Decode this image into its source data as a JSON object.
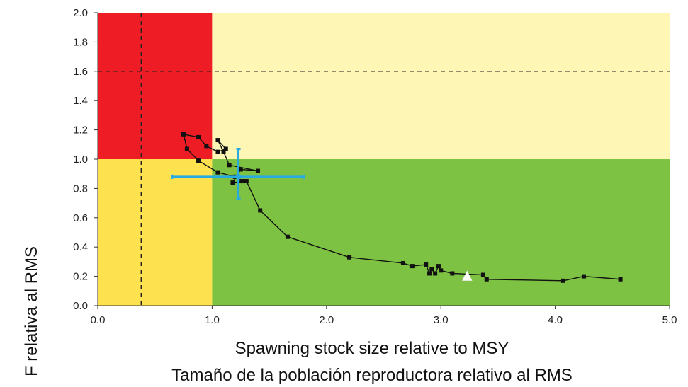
{
  "chart_data": {
    "type": "scatter",
    "xlabel": "Spawning stock size relative to MSY",
    "xlabel_es": "Tamaño de la población reproductora relativo al RMS",
    "ylabel": "F relativa al RMS",
    "xlim": [
      0.0,
      5.0
    ],
    "ylim": [
      0.0,
      2.0
    ],
    "x_ticks": [
      "0.0",
      "1.0",
      "2.0",
      "3.0",
      "4.0",
      "5.0"
    ],
    "y_ticks": [
      "0.0",
      "0.2",
      "0.4",
      "0.6",
      "0.8",
      "1.0",
      "1.2",
      "1.4",
      "1.6",
      "1.8",
      "2.0"
    ],
    "zones": [
      {
        "name": "overfished-overfishing",
        "x": [
          0.0,
          1.0
        ],
        "y": [
          1.0,
          2.0
        ],
        "color": "#ee1c24"
      },
      {
        "name": "overfishing",
        "x": [
          1.0,
          5.0
        ],
        "y": [
          1.0,
          2.0
        ],
        "color": "#fef6b5"
      },
      {
        "name": "overfished",
        "x": [
          0.0,
          1.0
        ],
        "y": [
          0.0,
          1.0
        ],
        "color": "#fde14f"
      },
      {
        "name": "healthy",
        "x": [
          1.0,
          5.0
        ],
        "y": [
          0.0,
          1.0
        ],
        "color": "#7dc242"
      }
    ],
    "reference_lines": [
      {
        "orientation": "vertical",
        "value": 0.38,
        "style": "dashed"
      },
      {
        "orientation": "horizontal",
        "value": 1.6,
        "style": "dashed"
      }
    ],
    "series": [
      {
        "color": "#111111",
        "points": [
          [
            4.57,
            0.18
          ],
          [
            4.25,
            0.2
          ],
          [
            4.07,
            0.17
          ],
          [
            3.4,
            0.18
          ],
          [
            3.37,
            0.21
          ],
          [
            3.1,
            0.22
          ],
          [
            3.0,
            0.24
          ],
          [
            2.98,
            0.27
          ],
          [
            2.95,
            0.22
          ],
          [
            2.92,
            0.25
          ],
          [
            2.9,
            0.22
          ],
          [
            2.87,
            0.28
          ],
          [
            2.75,
            0.27
          ],
          [
            2.67,
            0.29
          ],
          [
            2.2,
            0.33
          ],
          [
            1.66,
            0.47
          ],
          [
            1.42,
            0.65
          ],
          [
            1.3,
            0.85
          ],
          [
            1.18,
            0.84
          ],
          [
            1.25,
            0.93
          ],
          [
            1.4,
            0.92
          ],
          [
            1.15,
            0.96
          ],
          [
            1.1,
            1.05
          ],
          [
            1.05,
            1.13
          ],
          [
            1.12,
            1.07
          ],
          [
            1.05,
            1.05
          ],
          [
            0.95,
            1.09
          ],
          [
            0.88,
            1.15
          ],
          [
            0.75,
            1.17
          ],
          [
            0.78,
            1.07
          ],
          [
            0.88,
            0.99
          ],
          [
            1.05,
            0.91
          ],
          [
            1.2,
            0.88
          ],
          [
            1.26,
            0.85
          ]
        ]
      }
    ],
    "current_estimate": {
      "x": 1.23,
      "y": 0.88,
      "x_range": [
        0.65,
        1.8
      ],
      "y_range": [
        0.73,
        1.07
      ],
      "color": "#29abe2"
    },
    "marker_triangle": {
      "x": 3.23,
      "y": 0.2,
      "color": "#ffffff"
    }
  }
}
